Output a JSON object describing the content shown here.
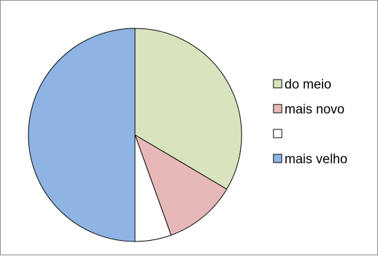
{
  "chart_data": {
    "type": "pie",
    "title": "",
    "legend_position": "right",
    "start_angle_deg": 0,
    "direction": "clockwise",
    "slices": [
      {
        "label": "do meio",
        "value": 33.5,
        "color": "#d7e4bd"
      },
      {
        "label": "mais novo",
        "value": 11,
        "color": "#e6b9b8"
      },
      {
        "label": "",
        "value": 5.5,
        "color": "#ffffff"
      },
      {
        "label": "mais velho",
        "value": 50,
        "color": "#8eb4e3"
      }
    ]
  }
}
